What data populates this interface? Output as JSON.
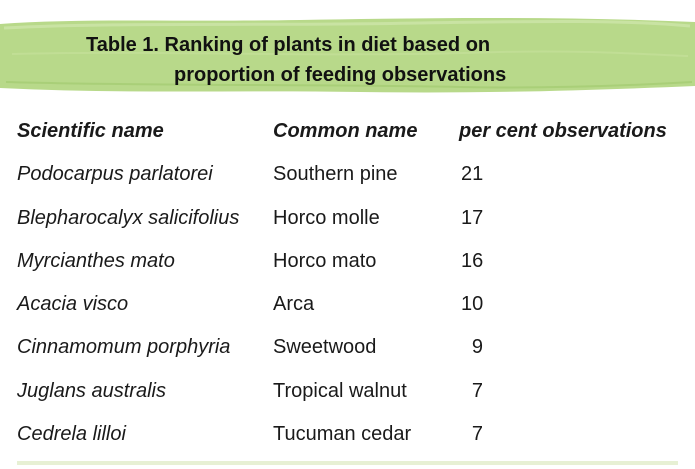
{
  "table": {
    "title_line1": "Table 1. Ranking of plants in diet based on",
    "title_line2": "proportion of feeding observations",
    "headers": [
      "Scientific name",
      "Common name",
      "per cent observations"
    ],
    "rows": [
      [
        "Podocarpus parlatorei",
        "Southern pine",
        "21"
      ],
      [
        "Blepharocalyx salicifolius",
        "Horco molle",
        "17"
      ],
      [
        "Myrcianthes mato",
        "Horco mato",
        "16"
      ],
      [
        "Acacia visco",
        "Arca",
        "10"
      ],
      [
        "Cinnamomum porphyria",
        "Sweetwood",
        "9"
      ],
      [
        "Juglans australis",
        "Tropical walnut",
        "7"
      ],
      [
        "Cedrela lilloi",
        "Tucuman cedar",
        "7"
      ]
    ]
  },
  "colors": {
    "banner_green": "#b8d98a",
    "rule_green": "#e7f0d4"
  }
}
